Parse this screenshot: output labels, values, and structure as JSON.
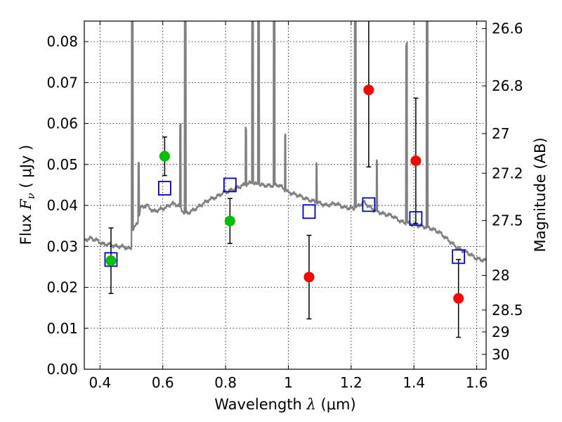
{
  "chart_data": {
    "type": "scatter",
    "xlabel": {
      "prefix": "Wavelength  ",
      "symbol": "λ",
      "unit": " (μm)"
    },
    "ylabel": {
      "prefix": "Flux  ",
      "symbol": "F",
      "sub": "ν",
      "unit": "  ( μJy )"
    },
    "y2label": "Magnitude (AB)",
    "xlim": [
      0.35,
      1.63
    ],
    "ylim": [
      0.0,
      0.085
    ],
    "grid": true,
    "xticks": [
      {
        "value": 0.4,
        "label": "0.4"
      },
      {
        "value": 0.6,
        "label": "0.6"
      },
      {
        "value": 0.8,
        "label": "0.8"
      },
      {
        "value": 1.0,
        "label": "1"
      },
      {
        "value": 1.2,
        "label": "1.2"
      },
      {
        "value": 1.4,
        "label": "1.4"
      },
      {
        "value": 1.6,
        "label": "1.6"
      }
    ],
    "yticks": [
      {
        "value": 0.0,
        "label": "0.00"
      },
      {
        "value": 0.01,
        "label": "0.01"
      },
      {
        "value": 0.02,
        "label": "0.02"
      },
      {
        "value": 0.03,
        "label": "0.03"
      },
      {
        "value": 0.04,
        "label": "0.04"
      },
      {
        "value": 0.05,
        "label": "0.05"
      },
      {
        "value": 0.06,
        "label": "0.06"
      },
      {
        "value": 0.07,
        "label": "0.07"
      },
      {
        "value": 0.08,
        "label": "0.08"
      }
    ],
    "magnitude_ticks": [
      {
        "mag": 26.6,
        "label": "26.6"
      },
      {
        "mag": 26.8,
        "label": "26.8"
      },
      {
        "mag": 27.0,
        "label": "27"
      },
      {
        "mag": 27.2,
        "label": "27.2"
      },
      {
        "mag": 27.5,
        "label": "27.5"
      },
      {
        "mag": 28.0,
        "label": "28"
      },
      {
        "mag": 28.5,
        "label": "28.5"
      },
      {
        "mag": 29.0,
        "label": "29"
      },
      {
        "mag": 30.0,
        "label": "30"
      }
    ],
    "colors": {
      "sed": "#808080",
      "green": "#00c000",
      "red": "#ff0000",
      "model": "#0000cc",
      "errorbar": "#000000"
    },
    "green_points": [
      {
        "x": 0.435,
        "y": 0.0265,
        "err": 0.008
      },
      {
        "x": 0.606,
        "y": 0.052,
        "err": 0.0047
      },
      {
        "x": 0.814,
        "y": 0.0362,
        "err": 0.0055
      }
    ],
    "red_points": [
      {
        "x": 1.066,
        "y": 0.0225,
        "err": 0.0102
      },
      {
        "x": 1.256,
        "y": 0.0682,
        "err": 0.0188
      },
      {
        "x": 1.406,
        "y": 0.0509,
        "err": 0.0153
      },
      {
        "x": 1.542,
        "y": 0.0173,
        "err": 0.0095
      }
    ],
    "model_points": [
      {
        "x": 0.435,
        "y": 0.0268
      },
      {
        "x": 0.606,
        "y": 0.0442
      },
      {
        "x": 0.814,
        "y": 0.045
      },
      {
        "x": 1.066,
        "y": 0.0385
      },
      {
        "x": 1.256,
        "y": 0.0402
      },
      {
        "x": 1.406,
        "y": 0.0368
      },
      {
        "x": 1.542,
        "y": 0.0275
      }
    ],
    "sed_continuum": [
      [
        0.35,
        0.0315
      ],
      [
        0.37,
        0.032
      ],
      [
        0.39,
        0.0315
      ],
      [
        0.41,
        0.0305
      ],
      [
        0.43,
        0.0305
      ],
      [
        0.45,
        0.03
      ],
      [
        0.47,
        0.03
      ],
      [
        0.49,
        0.0295
      ],
      [
        0.499,
        0.0295
      ],
      [
        0.503,
        0.034
      ],
      [
        0.51,
        0.0345
      ],
      [
        0.52,
        0.036
      ],
      [
        0.53,
        0.0395
      ],
      [
        0.55,
        0.04
      ],
      [
        0.57,
        0.0385
      ],
      [
        0.59,
        0.039
      ],
      [
        0.61,
        0.0395
      ],
      [
        0.63,
        0.0405
      ],
      [
        0.65,
        0.04
      ],
      [
        0.67,
        0.038
      ],
      [
        0.69,
        0.0385
      ],
      [
        0.71,
        0.0395
      ],
      [
        0.73,
        0.0405
      ],
      [
        0.75,
        0.0415
      ],
      [
        0.77,
        0.042
      ],
      [
        0.79,
        0.043
      ],
      [
        0.81,
        0.0435
      ],
      [
        0.83,
        0.044
      ],
      [
        0.85,
        0.0448
      ],
      [
        0.88,
        0.0455
      ],
      [
        0.91,
        0.045
      ],
      [
        0.94,
        0.0448
      ],
      [
        0.97,
        0.045
      ],
      [
        1.0,
        0.0432
      ],
      [
        1.03,
        0.0425
      ],
      [
        1.06,
        0.0415
      ],
      [
        1.09,
        0.0408
      ],
      [
        1.12,
        0.04
      ],
      [
        1.15,
        0.0405
      ],
      [
        1.18,
        0.0395
      ],
      [
        1.21,
        0.0392
      ],
      [
        1.24,
        0.0408
      ],
      [
        1.27,
        0.039
      ],
      [
        1.3,
        0.038
      ],
      [
        1.33,
        0.0375
      ],
      [
        1.36,
        0.036
      ],
      [
        1.39,
        0.0355
      ],
      [
        1.42,
        0.035
      ],
      [
        1.45,
        0.0345
      ],
      [
        1.48,
        0.0335
      ],
      [
        1.51,
        0.0315
      ],
      [
        1.54,
        0.0295
      ],
      [
        1.57,
        0.0285
      ],
      [
        1.6,
        0.027
      ],
      [
        1.63,
        0.0265
      ]
    ],
    "sed_lines": [
      {
        "x": 0.503,
        "peak": 0.11,
        "width": 0.004
      },
      {
        "x": 0.523,
        "peak": 0.0505,
        "width": 0.003
      },
      {
        "x": 0.656,
        "peak": 0.0595,
        "width": 0.003
      },
      {
        "x": 0.672,
        "peak": 0.11,
        "width": 0.004
      },
      {
        "x": 0.865,
        "peak": 0.059,
        "width": 0.003
      },
      {
        "x": 0.886,
        "peak": 0.11,
        "width": 0.004
      },
      {
        "x": 0.905,
        "peak": 0.11,
        "width": 0.004
      },
      {
        "x": 0.955,
        "peak": 0.11,
        "width": 0.004
      },
      {
        "x": 0.99,
        "peak": 0.0575,
        "width": 0.003
      },
      {
        "x": 1.09,
        "peak": 0.0505,
        "width": 0.003
      },
      {
        "x": 1.213,
        "peak": 0.11,
        "width": 0.004
      },
      {
        "x": 1.282,
        "peak": 0.0505,
        "width": 0.003
      },
      {
        "x": 1.376,
        "peak": 0.0795,
        "width": 0.004
      },
      {
        "x": 1.442,
        "peak": 0.11,
        "width": 0.004
      }
    ]
  }
}
